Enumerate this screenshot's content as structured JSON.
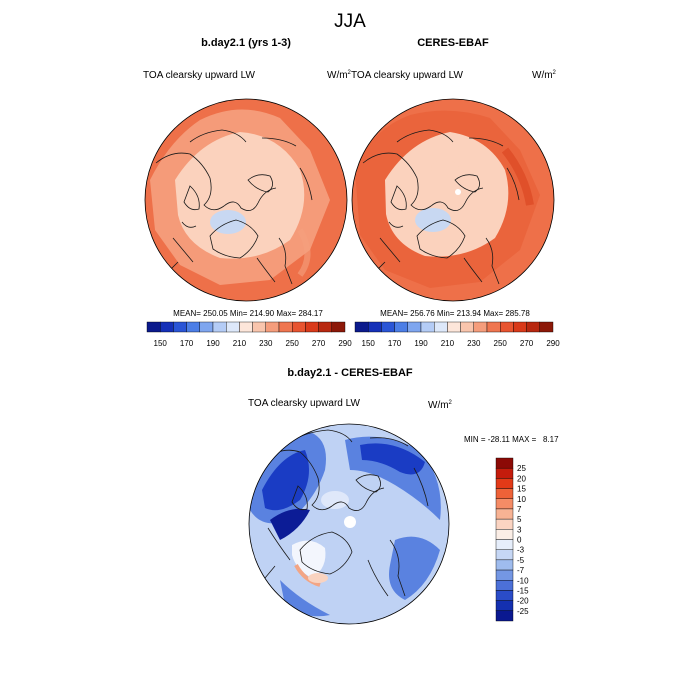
{
  "season": "JJA",
  "panels": [
    {
      "title": "b.day2.1 (yrs 1-3)",
      "variable": "TOA clearsky upward LW",
      "units": "W/m",
      "units_sup": "2",
      "stats": "MEAN= 250.05  Min= 214.90  Max= 284.17"
    },
    {
      "title": "CERES-EBAF",
      "variable": "TOA clearsky upward LW",
      "units": "W/m",
      "units_sup": "2",
      "stats": "MEAN= 256.76  Min= 213.94  Max= 285.78"
    }
  ],
  "difference": {
    "title": "b.day2.1 - CERES-EBAF",
    "variable": "TOA clearsky upward LW",
    "units": "W/m",
    "units_sup": "2",
    "stats": "MIN = -28.11 MAX =   8.17"
  },
  "chart_data": [
    {
      "type": "heatmap",
      "projection": "north polar stereographic",
      "title": "b.day2.1 (yrs 1-3)",
      "variable": "TOA clearsky upward LW",
      "units": "W/m2",
      "mean": 250.05,
      "min": 214.9,
      "max": 284.17,
      "colorbar_ticks": [
        "150",
        "170",
        "190",
        "210",
        "230",
        "250",
        "270",
        "290"
      ],
      "colorbar_colors": [
        "#0b1a8c",
        "#1530b8",
        "#2a55d6",
        "#4c7ee6",
        "#7fa6ef",
        "#b4ccf6",
        "#dde8fa",
        "#fde6da",
        "#f9c5ad",
        "#f59d7c",
        "#ef7650",
        "#e85430",
        "#d93a1a",
        "#b82810",
        "#8c1808"
      ]
    },
    {
      "type": "heatmap",
      "projection": "north polar stereographic",
      "title": "CERES-EBAF",
      "variable": "TOA clearsky upward LW",
      "units": "W/m2",
      "mean": 256.76,
      "min": 213.94,
      "max": 285.78,
      "colorbar_ticks": [
        "150",
        "170",
        "190",
        "210",
        "230",
        "250",
        "270",
        "290"
      ],
      "colorbar_colors": [
        "#0b1a8c",
        "#1530b8",
        "#2a55d6",
        "#4c7ee6",
        "#7fa6ef",
        "#b4ccf6",
        "#dde8fa",
        "#fde6da",
        "#f9c5ad",
        "#f59d7c",
        "#ef7650",
        "#e85430",
        "#d93a1a",
        "#b82810",
        "#8c1808"
      ]
    },
    {
      "type": "heatmap",
      "projection": "north polar stereographic",
      "title": "b.day2.1 - CERES-EBAF",
      "variable": "TOA clearsky upward LW",
      "units": "W/m2",
      "min": -28.11,
      "max": 8.17,
      "colorbar_ticks": [
        "25",
        "20",
        "15",
        "10",
        "7",
        "5",
        "3",
        "0",
        "-3",
        "-5",
        "-7",
        "-10",
        "-15",
        "-20",
        "-25"
      ],
      "colorbar_colors": [
        "#8c0a06",
        "#c41c0c",
        "#e23a18",
        "#ee6238",
        "#f58c66",
        "#f8b394",
        "#fbd4c2",
        "#fbeee6",
        "#e6eefb",
        "#c6d7f5",
        "#9fbcee",
        "#7497e4",
        "#4c70d8",
        "#2a4cc8",
        "#1430b0",
        "#0a1890"
      ]
    }
  ],
  "colors": {
    "coast": "#1a1a1a",
    "warm_base": "#ee7049",
    "warm_mid": "#f5a07e",
    "warm_light": "#fbd2bd",
    "ice": "#c8d8f2",
    "diff_base": "#bfd2f4",
    "diff_mid": "#5a82e0",
    "diff_deep": "#1a3cc4",
    "diff_darkest": "#0c1c96"
  }
}
